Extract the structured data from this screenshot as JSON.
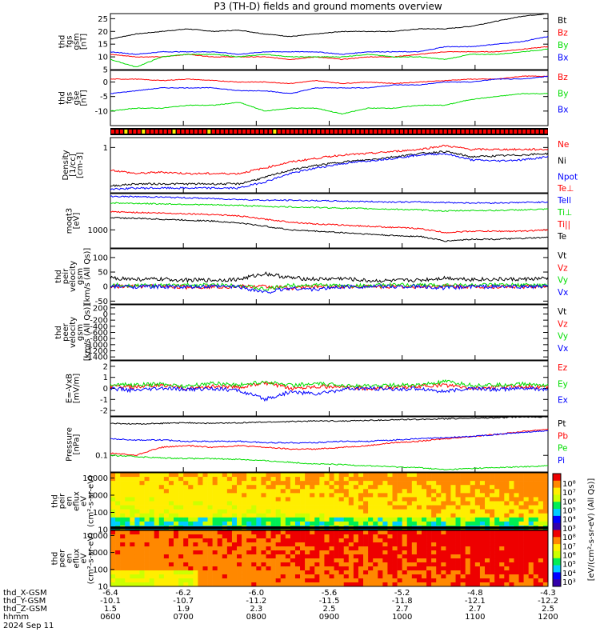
{
  "title": "P3 (TH-D) fields and ground moments overview",
  "colors": {
    "black": "#000000",
    "red": "#ff0000",
    "green": "#00dd00",
    "blue": "#0000ff"
  },
  "chart_data": [
    {
      "type": "line",
      "panel": "fgs-gsm",
      "ylabel": [
        "thd",
        "fgs",
        "gsm",
        "[nT]"
      ],
      "ylim": [
        5,
        27
      ],
      "yticks": [
        "25",
        "20",
        "15",
        "10",
        "5"
      ],
      "yvals": [
        25,
        20,
        15,
        10,
        5
      ],
      "series": [
        {
          "name": "Bt",
          "color": "black",
          "values": [
            17,
            19,
            20,
            21,
            20,
            20.5,
            19,
            18,
            19,
            20,
            20,
            20,
            21,
            21,
            22,
            24,
            26,
            27
          ]
        },
        {
          "name": "Bz",
          "color": "red",
          "values": [
            11,
            10,
            10,
            11,
            10,
            10,
            10,
            9,
            10,
            9,
            10,
            10,
            11,
            12,
            12,
            12,
            13,
            14
          ]
        },
        {
          "name": "By",
          "color": "green",
          "values": [
            9,
            6,
            10,
            11,
            11,
            10,
            11,
            10,
            10,
            10,
            11,
            10,
            10,
            9,
            11,
            11,
            12,
            13
          ]
        },
        {
          "name": "Bx",
          "color": "blue",
          "values": [
            12,
            11,
            12,
            12,
            12,
            11,
            12,
            12,
            12,
            11,
            12,
            12,
            12,
            14,
            14,
            15,
            16,
            18
          ]
        }
      ]
    },
    {
      "type": "line",
      "panel": "fgs-gse",
      "ylabel": [
        "thd",
        "fgs",
        "gse",
        "[nT]"
      ],
      "ylim": [
        -15,
        4
      ],
      "yticks": [
        "0",
        "-5",
        "-10"
      ],
      "yvals": [
        0,
        -5,
        -10
      ],
      "series": [
        {
          "name": "Bz",
          "color": "red",
          "values": [
            1,
            1,
            0.5,
            1,
            0.5,
            0,
            0,
            -0.5,
            0.5,
            -0.5,
            0,
            -0.5,
            0,
            0.5,
            1,
            1,
            2,
            2
          ]
        },
        {
          "name": "By",
          "color": "green",
          "values": [
            -10,
            -9,
            -9,
            -8,
            -8,
            -7,
            -10,
            -9,
            -9,
            -11,
            -9,
            -9,
            -8,
            -8,
            -6,
            -5,
            -4,
            -4
          ]
        },
        {
          "name": "Bx",
          "color": "blue",
          "values": [
            -4,
            -3,
            -2,
            -2,
            -2,
            -3,
            -3,
            -4,
            -2,
            -2,
            -2,
            -1,
            -1,
            0,
            0,
            1,
            1,
            2
          ]
        }
      ]
    },
    {
      "type": "line",
      "panel": "density",
      "ylabel": [
        "Density",
        "[1/cc]",
        "[cm-3]"
      ],
      "ylim": [
        0.3,
        1.3
      ],
      "yticks": [
        "1"
      ],
      "yvals": [
        1.0
      ],
      "series": [
        {
          "name": "Ne",
          "color": "red",
          "values": [
            0.55,
            0.5,
            0.52,
            0.5,
            0.5,
            0.5,
            0.58,
            0.68,
            0.75,
            0.82,
            0.85,
            0.9,
            0.95,
            1.05,
            0.95,
            0.95,
            0.95,
            0.95
          ]
        },
        {
          "name": "Ni",
          "color": "black",
          "values": [
            0.36,
            0.38,
            0.38,
            0.38,
            0.38,
            0.38,
            0.45,
            0.55,
            0.62,
            0.68,
            0.72,
            0.78,
            0.85,
            0.9,
            0.78,
            0.8,
            0.82,
            0.85
          ]
        },
        {
          "name": "Npot",
          "color": "blue",
          "values": [
            0.33,
            0.34,
            0.34,
            0.34,
            0.34,
            0.34,
            0.4,
            0.5,
            0.58,
            0.65,
            0.7,
            0.75,
            0.82,
            0.85,
            0.72,
            0.7,
            0.72,
            0.78
          ]
        }
      ],
      "extra_labels": [
        "Te⊥"
      ]
    },
    {
      "type": "line",
      "panel": "temperature",
      "ylabel": [
        "moqt3",
        "[eV]"
      ],
      "ylim": [
        500,
        4000
      ],
      "yticks": [
        "1000"
      ],
      "yvals": [
        1000
      ],
      "series": [
        {
          "name": "Tell",
          "color": "blue",
          "values": [
            3600,
            3550,
            3500,
            3400,
            3300,
            3200,
            3100,
            3100,
            3050,
            3000,
            2950,
            2900,
            2900,
            2850,
            2800,
            2800,
            2850,
            2900
          ]
        },
        {
          "name": "Ti⊥",
          "color": "green",
          "values": [
            2800,
            2750,
            2700,
            2650,
            2600,
            2550,
            2450,
            2400,
            2350,
            2300,
            2250,
            2200,
            2150,
            2050,
            2100,
            2100,
            2150,
            2200
          ]
        },
        {
          "name": "Ti||",
          "color": "red",
          "values": [
            2000,
            1950,
            1900,
            1850,
            1800,
            1700,
            1500,
            1350,
            1250,
            1200,
            1150,
            1100,
            1050,
            900,
            950,
            950,
            950,
            1000
          ]
        },
        {
          "name": "Te",
          "color": "black",
          "values": [
            1600,
            1550,
            1500,
            1450,
            1400,
            1300,
            1150,
            1000,
            950,
            900,
            850,
            800,
            780,
            650,
            700,
            700,
            720,
            750
          ]
        }
      ]
    },
    {
      "type": "line",
      "panel": "peir-velocity",
      "ylabel": [
        "thd",
        "peir",
        "velocity",
        "gsm",
        "[km/s (All Qs)]"
      ],
      "ylim": [
        -60,
        130
      ],
      "yticks": [
        "100",
        "50",
        "0",
        "-50"
      ],
      "yvals": [
        100,
        50,
        0,
        -50
      ],
      "series": [
        {
          "name": "Vt",
          "color": "black",
          "values": [
            30,
            25,
            25,
            22,
            22,
            25,
            45,
            30,
            25,
            28,
            20,
            20,
            22,
            30,
            25,
            25,
            25,
            28
          ]
        },
        {
          "name": "Vz",
          "color": "red",
          "values": [
            0,
            0,
            2,
            -2,
            0,
            0,
            0,
            -5,
            0,
            0,
            0,
            0,
            0,
            2,
            0,
            0,
            0,
            0
          ]
        },
        {
          "name": "Vy",
          "color": "green",
          "values": [
            5,
            5,
            3,
            5,
            5,
            5,
            -10,
            5,
            5,
            3,
            3,
            5,
            5,
            5,
            5,
            5,
            5,
            5
          ]
        },
        {
          "name": "Vx",
          "color": "blue",
          "values": [
            0,
            0,
            0,
            -2,
            0,
            0,
            -20,
            -5,
            -10,
            0,
            0,
            0,
            0,
            -5,
            0,
            0,
            0,
            0
          ]
        }
      ]
    },
    {
      "type": "line",
      "panel": "peer-velocity",
      "ylabel": [
        "thd",
        "peer",
        "velocity",
        "gsm",
        "[km/s (All Qs)]"
      ],
      "ylim": [
        -1500,
        300
      ],
      "yticks": [
        "200",
        "0",
        "-200",
        "-400",
        "-600",
        "-800",
        "-1000",
        "-1200",
        "-1400"
      ],
      "yvals": [
        200,
        0,
        -200,
        -400,
        -600,
        -800,
        -1000,
        -1200,
        -1400
      ],
      "series": [
        {
          "name": "Vt",
          "color": "black",
          "values": []
        },
        {
          "name": "Vz",
          "color": "red",
          "values": []
        },
        {
          "name": "Vy",
          "color": "green",
          "values": []
        },
        {
          "name": "Vx",
          "color": "blue",
          "values": []
        }
      ]
    },
    {
      "type": "line",
      "panel": "efield",
      "ylabel": [
        "E=-VxB",
        "[mV/m]"
      ],
      "ylim": [
        -2.5,
        2.5
      ],
      "yticks": [
        "2",
        "1",
        "0",
        "-1",
        "-2"
      ],
      "yvals": [
        2,
        1,
        0,
        -1,
        -2
      ],
      "series": [
        {
          "name": "Ez",
          "color": "red",
          "values": [
            0.2,
            0.1,
            0.3,
            0,
            0.2,
            0.1,
            0.5,
            0,
            0.2,
            0.1,
            0,
            0.1,
            0.2,
            0.3,
            0,
            0.1,
            0.2,
            0.1
          ]
        },
        {
          "name": "Ey",
          "color": "green",
          "values": [
            0.4,
            0.3,
            0.4,
            0.2,
            0.5,
            0.3,
            0.6,
            0.3,
            0.4,
            0.3,
            0.2,
            0.3,
            0.3,
            0.6,
            0.3,
            0.3,
            0.4,
            0.3
          ]
        },
        {
          "name": "Ex",
          "color": "blue",
          "values": [
            0,
            -0.2,
            0,
            -0.1,
            0,
            -0.2,
            -1,
            -0.3,
            -0.5,
            -0.1,
            0,
            -0.1,
            0,
            -0.3,
            0,
            -0.1,
            0,
            -0.1
          ]
        }
      ]
    },
    {
      "type": "line",
      "panel": "pressure",
      "ylabel": [
        "Pressure",
        "[nPa]"
      ],
      "ylim": [
        0.05,
        0.5
      ],
      "yticks": [
        "0.1"
      ],
      "yvals": [
        0.1
      ],
      "series": [
        {
          "name": "Pt",
          "color": "black",
          "values": [
            0.38,
            0.37,
            0.38,
            0.39,
            0.38,
            0.39,
            0.4,
            0.41,
            0.42,
            0.42,
            0.43,
            0.44,
            0.45,
            0.46,
            0.47,
            0.48,
            0.5,
            0.5
          ]
        },
        {
          "name": "Pb",
          "color": "red",
          "values": [
            0.11,
            0.1,
            0.14,
            0.15,
            0.14,
            0.15,
            0.14,
            0.13,
            0.13,
            0.14,
            0.15,
            0.17,
            0.18,
            0.2,
            0.22,
            0.24,
            0.27,
            0.3
          ]
        },
        {
          "name": "Pe",
          "color": "green",
          "values": [
            0.1,
            0.095,
            0.09,
            0.088,
            0.087,
            0.085,
            0.08,
            0.075,
            0.07,
            0.068,
            0.065,
            0.062,
            0.06,
            0.055,
            0.058,
            0.06,
            0.062,
            0.065
          ]
        },
        {
          "name": "Pi",
          "color": "blue",
          "values": [
            0.2,
            0.19,
            0.19,
            0.18,
            0.18,
            0.18,
            0.17,
            0.17,
            0.17,
            0.18,
            0.18,
            0.19,
            0.2,
            0.21,
            0.22,
            0.24,
            0.26,
            0.28
          ]
        }
      ]
    },
    {
      "type": "heatmap",
      "panel": "peir-eflux",
      "ylabel": [
        "thd",
        "peir",
        "en",
        "eflux",
        "eV",
        "(cm²-s-sr-eV)"
      ],
      "ylim": [
        10,
        20000
      ],
      "yticks": [
        "10000",
        "1000",
        "100",
        "10"
      ],
      "yvals": [
        10000,
        1000,
        100,
        10
      ]
    },
    {
      "type": "heatmap",
      "panel": "peer-eflux",
      "ylabel": [
        "thd",
        "peer",
        "en",
        "eflux",
        "eV",
        "(cm²-s-sr-eV)"
      ],
      "ylim": [
        10,
        20000
      ],
      "yticks": [
        "10000",
        "1000",
        "100",
        "10"
      ],
      "yvals": [
        10000,
        1000,
        100,
        10
      ]
    },
    {
      "type": "colorbar",
      "label": "[eV/(cm²-s-sr-eV) (All Qs)]",
      "ticks": [
        "10⁸",
        "10⁷",
        "10⁶",
        "10⁵",
        "10⁴",
        "10³",
        "10⁸",
        "10⁷",
        "10⁶",
        "10⁵",
        "10⁴",
        "10³"
      ]
    }
  ],
  "xaxis": {
    "row_labels": [
      "thd_X-GSM",
      "thd_Y-GSM",
      "thd_Z-GSM",
      "hhmm",
      "2024 Sep 11"
    ],
    "ticks": [
      {
        "x": "-6.4",
        "y": "-10.1",
        "z": "1.5",
        "t": "0600"
      },
      {
        "x": "-6.2",
        "y": "-10.7",
        "z": "1.9",
        "t": "0700"
      },
      {
        "x": "-6.0",
        "y": "-11.2",
        "z": "2.3",
        "t": "0800"
      },
      {
        "x": "-5.6",
        "y": "-11.5",
        "z": "2.5",
        "t": "0900"
      },
      {
        "x": "-5.2",
        "y": "-11.8",
        "z": "2.7",
        "t": "1000"
      },
      {
        "x": "-4.8",
        "y": "-12.1",
        "z": "2.7",
        "t": "1100"
      },
      {
        "x": "-4.3",
        "y": "-12.2",
        "z": "2.5",
        "t": "1200"
      }
    ]
  }
}
